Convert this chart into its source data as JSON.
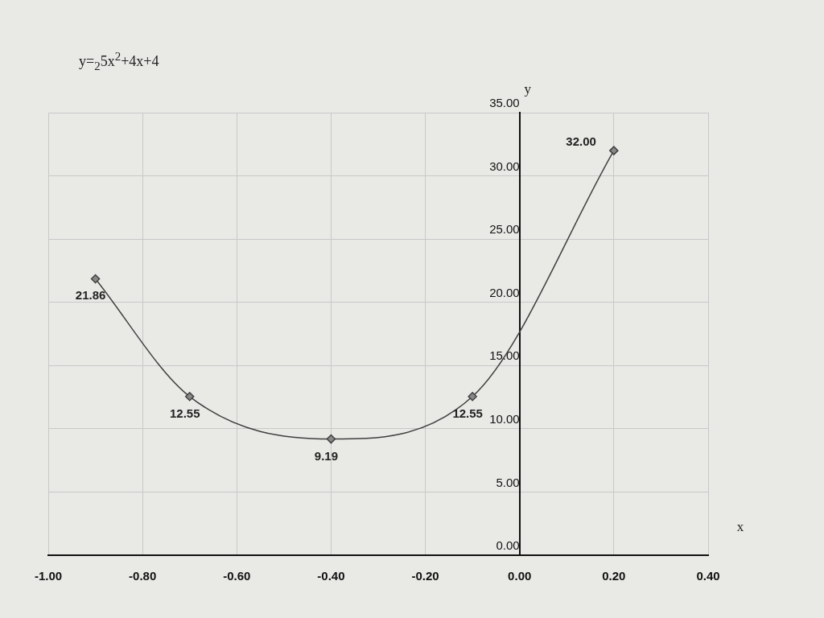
{
  "chart_data": {
    "type": "line",
    "title": "y=$_{2}$5x$^{2}$+4x+4",
    "xlabel": "x",
    "ylabel": "y",
    "x": [
      -0.9,
      -0.7,
      -0.4,
      -0.1,
      0.2
    ],
    "series": [
      {
        "color": "#404040",
        "values": [
          21.86,
          12.55,
          9.19,
          12.55,
          32.0
        ],
        "value_labels": [
          "21.86",
          "12.55",
          "9.19",
          "12.55",
          "32.00"
        ]
      }
    ],
    "xlim": [
      -1,
      0.4
    ],
    "xticks": [
      {
        "value": -1,
        "label": "-1.00"
      },
      {
        "value": -0.8,
        "label": "-0.80"
      },
      {
        "value": -0.6,
        "label": "-0.60"
      },
      {
        "value": -0.4,
        "label": "-0.40"
      },
      {
        "value": -0.2,
        "label": "-0.20"
      },
      {
        "value": 0,
        "label": "0.00"
      },
      {
        "value": 0.2,
        "label": "0.20"
      },
      {
        "value": 0.4,
        "label": "0.40"
      }
    ],
    "ylim": [
      0,
      35
    ],
    "yticks": [
      {
        "value": 0,
        "label": "0.00"
      },
      {
        "value": 5,
        "label": "5.00"
      },
      {
        "value": 10,
        "label": "10.00"
      },
      {
        "value": 15,
        "label": "15.00"
      },
      {
        "value": 20,
        "label": "20.00"
      },
      {
        "value": 25,
        "label": "25.00"
      },
      {
        "value": 30,
        "label": "30.00"
      },
      {
        "value": 35,
        "label": "35.00"
      }
    ],
    "grid": true,
    "marker": "diamond",
    "line_style": "solid"
  }
}
